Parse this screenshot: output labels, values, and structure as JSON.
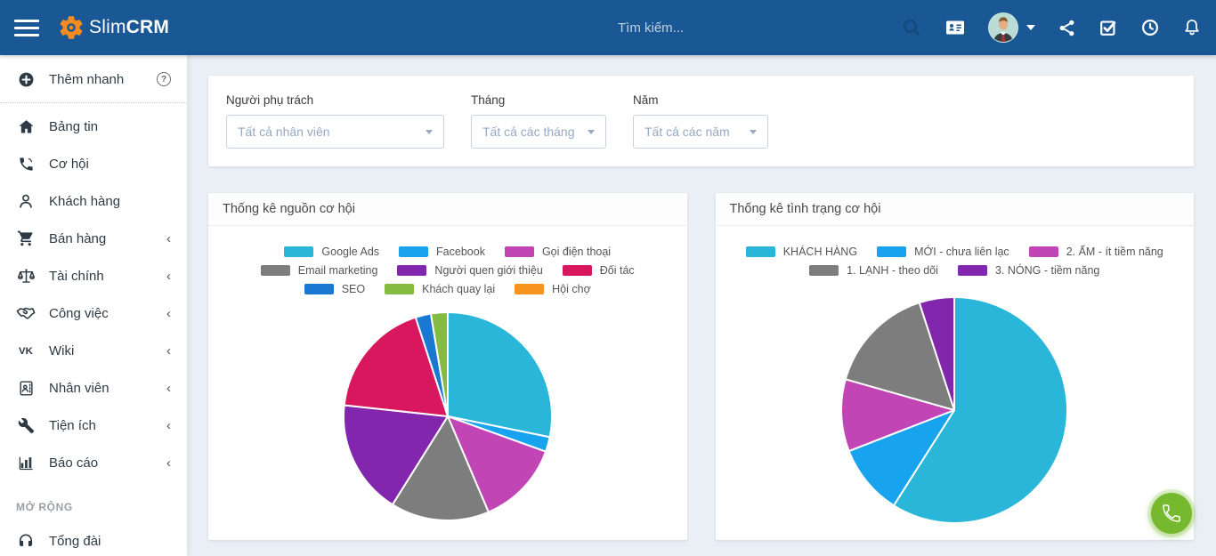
{
  "navbar": {
    "brand_light": "Slim",
    "brand_bold": "CRM",
    "search_placeholder": "Tìm kiếm..."
  },
  "sidebar": {
    "items": [
      {
        "icon": "plus-circle-icon",
        "label": "Thêm nhanh"
      },
      {
        "icon": "home-icon",
        "label": "Bảng tin"
      },
      {
        "icon": "phone-volume-icon",
        "label": "Cơ hội"
      },
      {
        "icon": "user-icon",
        "label": "Khách hàng"
      },
      {
        "icon": "cart-icon",
        "label": "Bán hàng",
        "chevron": "‹"
      },
      {
        "icon": "balance-scale-icon",
        "label": "Tài chính",
        "chevron": "‹"
      },
      {
        "icon": "handshake-icon",
        "label": "Công việc",
        "chevron": "‹"
      },
      {
        "icon": "vk-icon",
        "label": "Wiki",
        "chevron": "‹"
      },
      {
        "icon": "id-badge-icon",
        "label": "Nhân viên",
        "chevron": "‹"
      },
      {
        "icon": "wrench-icon",
        "label": "Tiện ích",
        "chevron": "‹"
      },
      {
        "icon": "bar-chart-icon",
        "label": "Báo cáo",
        "chevron": "‹"
      },
      {
        "icon": "headset-icon",
        "label": "Tổng đài"
      }
    ],
    "section_label": "MỞ RỘNG"
  },
  "filters": [
    {
      "label": "Người phụ trách",
      "value": "Tất cả nhân viên"
    },
    {
      "label": "Tháng",
      "value": "Tất cả các tháng"
    },
    {
      "label": "Năm",
      "value": "Tất cả các năm"
    }
  ],
  "chart_data": [
    {
      "type": "pie",
      "title": "Thống kê nguồn cơ hội",
      "labels": [
        "Google Ads",
        "Facebook",
        "Gọi điện thoại",
        "Email marketing",
        "Người quen giới thiệu",
        "Đối tác",
        "SEO",
        "Khách quay lại",
        "Hội chợ"
      ],
      "values": [
        28.2,
        2.3,
        13.1,
        15.3,
        17.8,
        18.3,
        2.4,
        2.6,
        0
      ],
      "colors": [
        "#29b6d8",
        "#18a3ee",
        "#c245b5",
        "#7d7d7d",
        "#8126ad",
        "#d8175f",
        "#1a78d2",
        "#85bb40",
        "#f7941e"
      ],
      "units": "percent",
      "start_angle_deg": 0,
      "direction": "clockwise",
      "legend_position": "top",
      "legend_rows": [
        [
          0,
          1,
          2
        ],
        [
          3,
          4,
          5
        ],
        [
          6,
          7,
          8
        ]
      ]
    },
    {
      "type": "pie",
      "title": "Thống kê tình trạng cơ hội",
      "labels": [
        "KHÁCH HÀNG",
        "MỚI - chưa liên lạc",
        "2. ẤM - ít tiềm năng",
        "1. LẠNH - theo dõi",
        "3. NÓNG - tiềm năng"
      ],
      "values": [
        59,
        10.1,
        10.3,
        15.6,
        5
      ],
      "colors": [
        "#29b6d8",
        "#18a3ee",
        "#c245b5",
        "#7d7d7d",
        "#8126ad"
      ],
      "units": "percent",
      "start_angle_deg": 0,
      "direction": "clockwise",
      "legend_position": "top",
      "legend_rows": [
        [
          0,
          1,
          2
        ],
        [
          3,
          4
        ]
      ]
    }
  ],
  "colors": {
    "navbar_bg": "#1a5795",
    "page_bg": "#eaeff5",
    "fab_green": "#76b82e",
    "logo_orange": "#f68b1f"
  }
}
